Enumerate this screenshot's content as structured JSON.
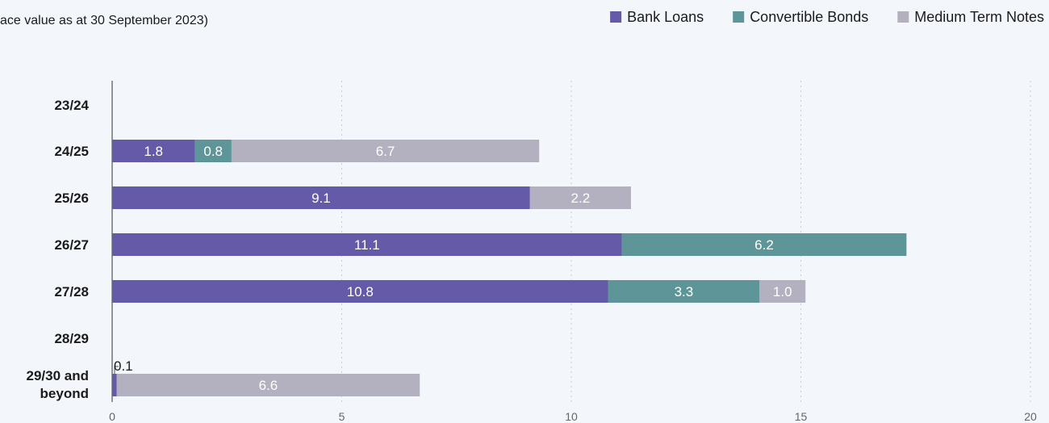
{
  "chart_data": {
    "type": "bar",
    "orientation": "horizontal",
    "stacked": true,
    "title": "",
    "subtitle": "ace value as at 30 September 2023)",
    "categories": [
      "23/24",
      "24/25",
      "25/26",
      "26/27",
      "27/28",
      "28/29",
      "29/30 and beyond"
    ],
    "series": [
      {
        "name": "Bank Loans",
        "color": "#645aa8",
        "values": [
          0,
          1.8,
          9.1,
          11.1,
          10.8,
          0,
          0.1
        ],
        "labels": [
          "",
          "1.8",
          "9.1",
          "11.1",
          "10.8",
          "",
          "0.1"
        ]
      },
      {
        "name": "Convertible Bonds",
        "color": "#5e9598",
        "values": [
          0,
          0.8,
          0,
          6.2,
          3.3,
          0,
          0
        ],
        "labels": [
          "",
          "0.8",
          "",
          "6.2",
          "3.3",
          "",
          ""
        ]
      },
      {
        "name": "Medium Term Notes",
        "color": "#b3b0bf",
        "values": [
          0,
          6.7,
          2.2,
          0,
          1.0,
          0,
          6.6
        ],
        "labels": [
          "",
          "6.7",
          "2.2",
          "",
          "1.0",
          "",
          "6.6"
        ]
      }
    ],
    "xlim": [
      0,
      20
    ],
    "xticks": [
      0,
      5,
      10,
      15,
      20
    ],
    "xlabel": "",
    "ylabel": "",
    "grid": true,
    "legend_position": "top-right"
  }
}
